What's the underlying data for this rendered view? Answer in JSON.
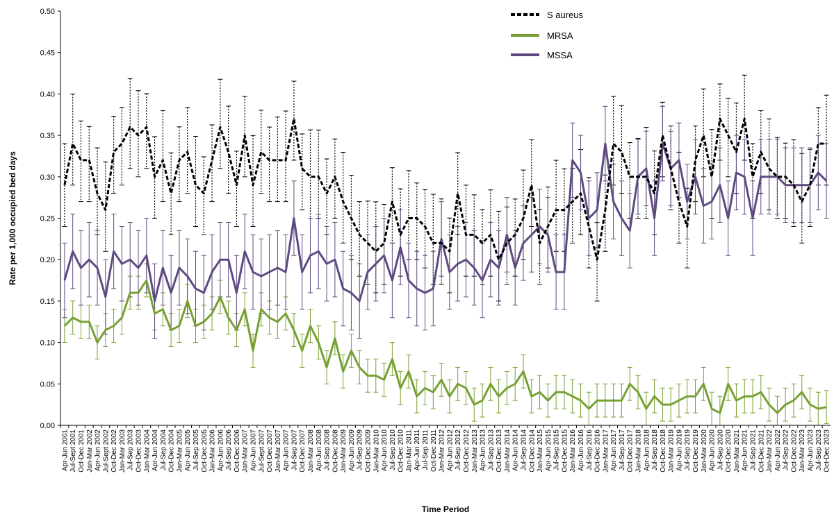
{
  "chart_data": {
    "type": "line",
    "xlabel": "Time Period",
    "ylabel": "Rate per 1,000 occupied bed days",
    "ylim": [
      0,
      0.5
    ],
    "yticks": [
      "0.00",
      "0.05",
      "0.10",
      "0.15",
      "0.20",
      "0.25",
      "0.30",
      "0.35",
      "0.40",
      "0.45",
      "0.50"
    ],
    "grid": false,
    "legend_position": "top-center",
    "categories": [
      "Apr-Jun 2001",
      "Jul-Sept 2001",
      "Oct-Dec 2001",
      "Jan-Mar 2002",
      "Apr-Jun 2002",
      "Jul-Sept 2002",
      "Oct-Dec 2002",
      "Jan-Mar 2003",
      "Jul-Sep 2003",
      "Oct-Dec 2003",
      "Jan-Mar 2004",
      "Apr-Jun 2004",
      "Jul-Sep 2004",
      "Oct-Dec 2004",
      "Jan-Mar 2005",
      "Apr-Jun 2005",
      "Jul-Sep 2005",
      "Oct-Dec 2005",
      "Jan-Mar 2006",
      "Apr-Jun 2006",
      "Jul-Sep 2006",
      "Oct-Dec 2006",
      "Jan-Mar 2007",
      "Apr-Jun 2007",
      "Jul-Sept 2007",
      "Oct-Dec 2007",
      "Jan-Mar 2007",
      "Apr-Jun 2007",
      "Jul-Sep 2007",
      "Oct-Dec 2007",
      "Jan-Mar 2008",
      "Apr-Jun 2008",
      "Jul-Sep 2008",
      "Oct-Dec 2008",
      "Jan-Mar 2009",
      "Apr-Jun 2009",
      "Jul-Sep 2009",
      "Oct-Dec 2009",
      "Jan-Mar 2010",
      "Apr-Jun 2010",
      "Jul-Sep 2010",
      "Oct-Dec 2010",
      "Jan-Mar 2011",
      "Apr-Jun 2011",
      "Jul-Sep 2011",
      "Oct-Dec 2011",
      "Jan-Mar 2012",
      "Apr-Jun 2012",
      "Jul-Sep 2012",
      "Oct-Dec 2012",
      "Jan-Mar 2013",
      "Apr-Jun 2013",
      "Jul-Sep 2013",
      "Oct-Dec 2013",
      "Jan-Mar 2014",
      "Apr-Jun 2014",
      "Jul-Sep 2014",
      "Oct-Dec 2014",
      "Jan-Mar 2015",
      "Apr-Jun 2015",
      "Jul-Sep 2015",
      "Oct-Dec 2015",
      "Jan-Mar 2016",
      "Apr-Jun 2016",
      "Jul-Sep 2016",
      "Oct-Dec 2016",
      "Jan-Mar 2017",
      "Apr-Jun 2017",
      "Jul-Sep 2017",
      "Oct-Dec 2017",
      "Jan-Mar 2018",
      "Apr-Jun 2018",
      "Jul-Sep 2018",
      "Oct-Dec 2018",
      "Jan-Mar 2019",
      "Apr-Jun 2019",
      "Jul-Sep 2019",
      "Oct-Dec 2019",
      "Jan-Mar 2020",
      "Apr-Jun 2020",
      "Jul-Sep 2020",
      "Oct-Dec 2020",
      "Jan-Mar 2021",
      "Apr-Jun 2021",
      "Jul-Sep 2021",
      "Oct-Dec 2021",
      "Jan-Mar 2022",
      "Apr-Jun 2022",
      "Jul-Sep 2022",
      "Oct-Dec 2022",
      "Jan-Mar 2023",
      "Apr-Jun 2023",
      "Jul-Sep 2023",
      "Oct-Dec 2023"
    ],
    "series": [
      {
        "name": "S aureus",
        "color": "#000000",
        "dash": true,
        "values": [
          0.29,
          0.34,
          0.32,
          0.32,
          0.28,
          0.26,
          0.33,
          0.34,
          0.36,
          0.35,
          0.36,
          0.3,
          0.32,
          0.28,
          0.32,
          0.33,
          0.29,
          0.28,
          0.32,
          0.36,
          0.33,
          0.29,
          0.35,
          0.29,
          0.33,
          0.32,
          0.32,
          0.32,
          0.37,
          0.31,
          0.3,
          0.3,
          0.28,
          0.3,
          0.27,
          0.25,
          0.23,
          0.22,
          0.21,
          0.22,
          0.27,
          0.23,
          0.25,
          0.25,
          0.24,
          0.22,
          0.22,
          0.21,
          0.28,
          0.23,
          0.23,
          0.22,
          0.23,
          0.2,
          0.22,
          0.23,
          0.25,
          0.29,
          0.22,
          0.24,
          0.26,
          0.26,
          0.27,
          0.28,
          0.24,
          0.2,
          0.26,
          0.34,
          0.33,
          0.3,
          0.3,
          0.3,
          0.28,
          0.35,
          0.31,
          0.27,
          0.24,
          0.32,
          0.35,
          0.3,
          0.37,
          0.35,
          0.33,
          0.37,
          0.3,
          0.33,
          0.31,
          0.3,
          0.3,
          0.29,
          0.27,
          0.29,
          0.34,
          0.34
        ]
      },
      {
        "name": "MRSA",
        "color": "#77A033",
        "values": [
          0.12,
          0.13,
          0.125,
          0.125,
          0.1,
          0.115,
          0.12,
          0.13,
          0.16,
          0.16,
          0.175,
          0.135,
          0.14,
          0.115,
          0.12,
          0.15,
          0.12,
          0.125,
          0.135,
          0.155,
          0.13,
          0.115,
          0.14,
          0.09,
          0.14,
          0.13,
          0.125,
          0.135,
          0.115,
          0.09,
          0.12,
          0.1,
          0.07,
          0.105,
          0.065,
          0.09,
          0.07,
          0.06,
          0.06,
          0.055,
          0.08,
          0.045,
          0.065,
          0.035,
          0.045,
          0.04,
          0.055,
          0.035,
          0.05,
          0.045,
          0.025,
          0.03,
          0.05,
          0.035,
          0.045,
          0.05,
          0.065,
          0.035,
          0.04,
          0.03,
          0.04,
          0.04,
          0.035,
          0.03,
          0.02,
          0.03,
          0.03,
          0.03,
          0.03,
          0.05,
          0.04,
          0.02,
          0.035,
          0.025,
          0.025,
          0.03,
          0.035,
          0.035,
          0.05,
          0.02,
          0.015,
          0.05,
          0.03,
          0.035,
          0.035,
          0.04,
          0.025,
          0.015,
          0.025,
          0.03,
          0.04,
          0.025,
          0.02,
          0.022
        ]
      },
      {
        "name": "MSSA",
        "color": "#5E4A80",
        "values": [
          0.175,
          0.21,
          0.19,
          0.2,
          0.19,
          0.155,
          0.21,
          0.195,
          0.2,
          0.19,
          0.205,
          0.15,
          0.19,
          0.16,
          0.19,
          0.18,
          0.165,
          0.16,
          0.185,
          0.2,
          0.2,
          0.16,
          0.21,
          0.185,
          0.18,
          0.185,
          0.19,
          0.185,
          0.25,
          0.185,
          0.205,
          0.21,
          0.195,
          0.2,
          0.165,
          0.16,
          0.15,
          0.185,
          0.195,
          0.205,
          0.175,
          0.215,
          0.175,
          0.165,
          0.16,
          0.165,
          0.225,
          0.185,
          0.195,
          0.2,
          0.19,
          0.175,
          0.2,
          0.19,
          0.23,
          0.19,
          0.22,
          0.23,
          0.24,
          0.23,
          0.185,
          0.185,
          0.32,
          0.305,
          0.25,
          0.26,
          0.34,
          0.27,
          0.25,
          0.235,
          0.3,
          0.31,
          0.25,
          0.34,
          0.31,
          0.32,
          0.27,
          0.3,
          0.265,
          0.27,
          0.29,
          0.25,
          0.305,
          0.3,
          0.25,
          0.3,
          0.3,
          0.3,
          0.29,
          0.29,
          0.29,
          0.29,
          0.305,
          0.295
        ]
      }
    ]
  }
}
